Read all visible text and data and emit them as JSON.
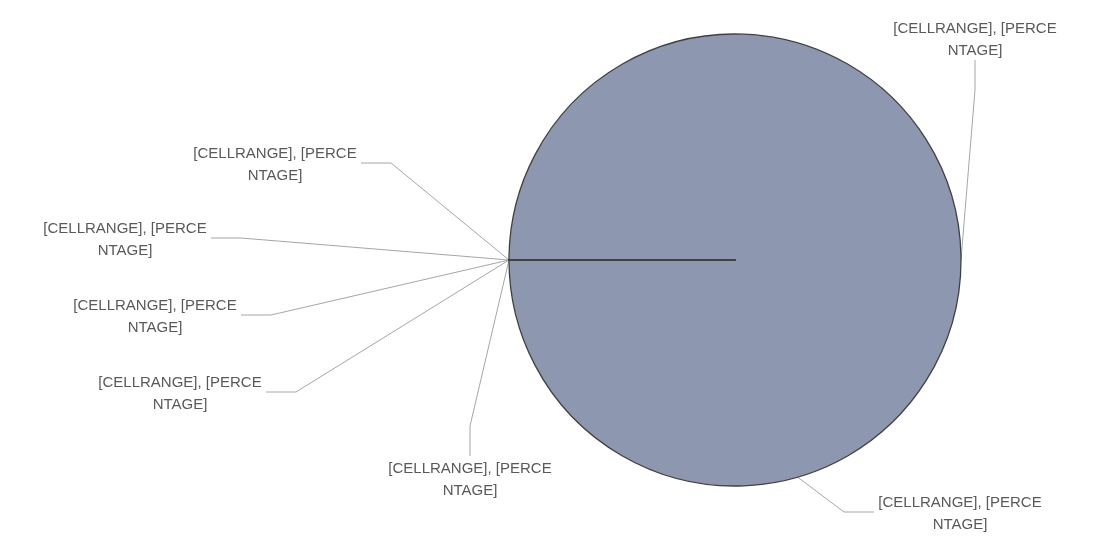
{
  "chart_data": {
    "type": "pie",
    "categories": [
      "[CELLRANGE], [PERCENTAGE]",
      "[CELLRANGE], [PERCENTAGE]",
      "[CELLRANGE], [PERCENTAGE]",
      "[CELLRANGE], [PERCENTAGE]",
      "[CELLRANGE], [PERCENTAGE]",
      "[CELLRANGE], [PERCENTAGE]",
      "[CELLRANGE], [PERCENTAGE]"
    ],
    "values": [
      100,
      0,
      0,
      0,
      0,
      0,
      0
    ],
    "colors": [
      "#8d97af",
      "#8d97af",
      "#8d97af",
      "#8d97af",
      "#8d97af",
      "#8d97af",
      "#8d97af"
    ],
    "legend": false
  }
}
